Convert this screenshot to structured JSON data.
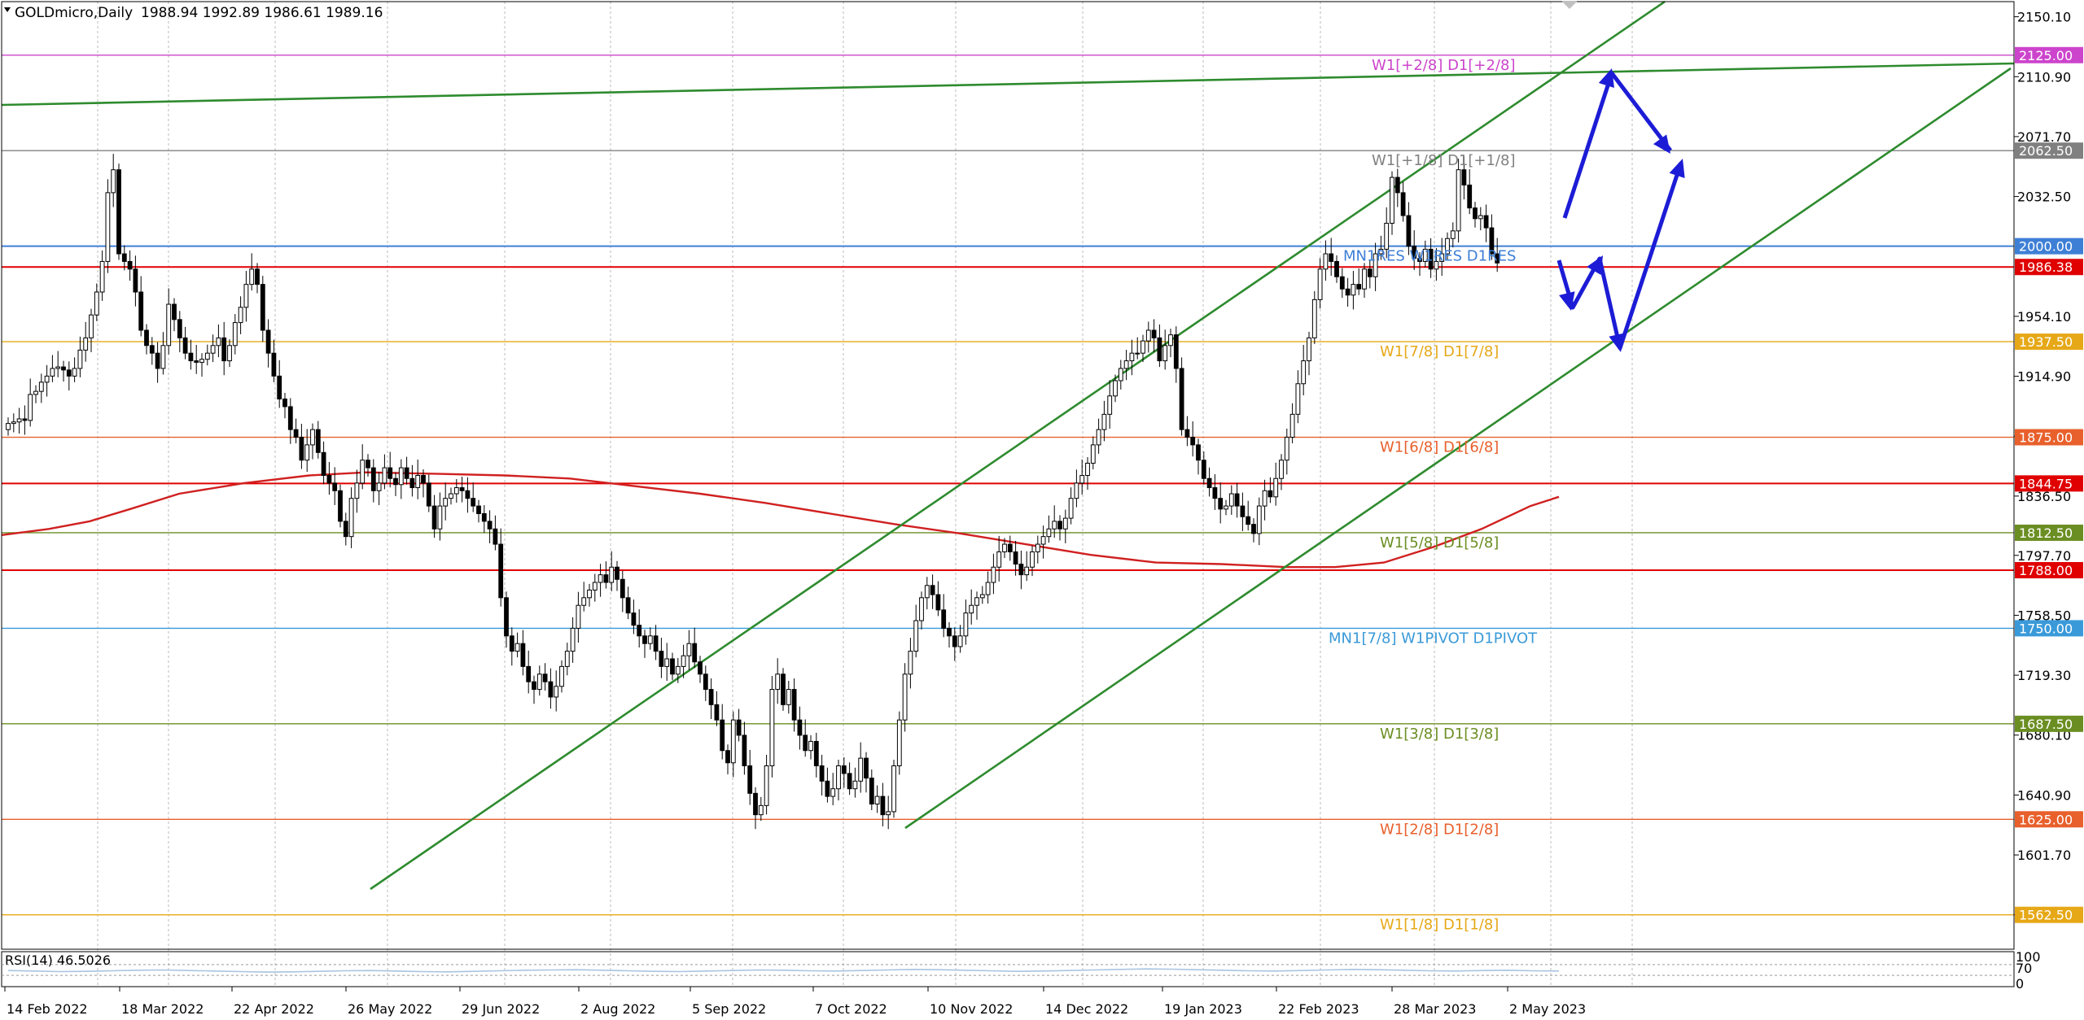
{
  "header": {
    "symbol": "GOLDmicro,Daily",
    "ohlc": "1988.94 1992.89 1986.61 1989.16"
  },
  "rsi": {
    "label": "RSI(14) 46.5026",
    "levels": [
      "100",
      "70",
      "0"
    ],
    "values": [
      48,
      46,
      44,
      45,
      47,
      49,
      50,
      48,
      46,
      44,
      42,
      43,
      45,
      47,
      48,
      46,
      44,
      43,
      45,
      47,
      49,
      50,
      51,
      49,
      47,
      45,
      44,
      46,
      48,
      50,
      49,
      47,
      46,
      48,
      50,
      52,
      51,
      49,
      47,
      45,
      46,
      48,
      50,
      52,
      54,
      53,
      51,
      49,
      47,
      46,
      48,
      50,
      52,
      51,
      49,
      47,
      46,
      48,
      49,
      47,
      46
    ]
  },
  "colors": {
    "channel": "#2e8b2e",
    "arrows": "#1c1cd6",
    "ma": "#d02020",
    "grid": "#bbbbbb",
    "axis": "#000000"
  },
  "chart_data": {
    "type": "candlestick",
    "symbol": "GOLDmicro",
    "timeframe": "Daily",
    "ylim": [
      1540,
      2160
    ],
    "y_ticks": [
      "2150.10",
      "2110.90",
      "2071.70",
      "2032.50",
      "1954.10",
      "1914.90",
      "1875.70",
      "1836.50",
      "1797.70",
      "1758.50",
      "1719.30",
      "1680.10",
      "1640.90",
      "1601.70",
      "1562.50"
    ],
    "x_labels": [
      "14 Feb 2022",
      "18 Mar 2022",
      "22 Apr 2022",
      "26 May 2022",
      "29 Jun 2022",
      "2 Aug 2022",
      "5 Sep 2022",
      "7 Oct 2022",
      "10 Nov 2022",
      "14 Dec 2022",
      "19 Jan 2023",
      "22 Feb 2023",
      "28 Mar 2023",
      "2 May 2023"
    ],
    "levels": [
      {
        "price": 2125.0,
        "label": "W1[+2/8] D1[+2/8]",
        "tag": "2125.00",
        "color": "#cc44cc"
      },
      {
        "price": 2062.5,
        "label": "W1[+1/8] D1[+1/8]",
        "tag": "2062.50",
        "color": "#808080"
      },
      {
        "price": 2000.0,
        "label": "MN1RES W1RES D1RES",
        "tag": "2000.00",
        "color": "#3e7fd6"
      },
      {
        "price": 1986.38,
        "label": "",
        "tag": "1986.38",
        "color": "#e00000"
      },
      {
        "price": 1937.5,
        "label": "W1[7/8] D1[7/8]",
        "tag": "1937.50",
        "color": "#e6a817"
      },
      {
        "price": 1875.0,
        "label": "W1[6/8] D1[6/8]",
        "tag": "1875.00",
        "color": "#e8602c"
      },
      {
        "price": 1844.75,
        "label": "",
        "tag": "1844.75",
        "color": "#e00000"
      },
      {
        "price": 1812.5,
        "label": "W1[5/8] D1[5/8]",
        "tag": "1812.50",
        "color": "#6b8e23"
      },
      {
        "price": 1788.0,
        "label": "",
        "tag": "1788.00",
        "color": "#e00000"
      },
      {
        "price": 1750.0,
        "label": "MN1[7/8] W1PIVOT D1PIVOT",
        "tag": "1750.00",
        "color": "#3a9ad9"
      },
      {
        "price": 1687.5,
        "label": "W1[3/8] D1[3/8]",
        "tag": "1687.50",
        "color": "#6b8e23"
      },
      {
        "price": 1625.0,
        "label": "W1[2/8] D1[2/8]",
        "tag": "1625.00",
        "color": "#e8602c"
      },
      {
        "price": 1562.5,
        "label": "W1[1/8] D1[1/8]",
        "tag": "1562.50",
        "color": "#e6a817"
      }
    ],
    "closes": [
      1884,
      1885,
      1887,
      1886,
      1903,
      1905,
      1911,
      1915,
      1920,
      1921,
      1919,
      1915,
      1920,
      1932,
      1940,
      1955,
      1970,
      1990,
      2035,
      2050,
      1995,
      1990,
      1985,
      1970,
      1945,
      1935,
      1930,
      1920,
      1935,
      1962,
      1952,
      1940,
      1930,
      1925,
      1924,
      1926,
      1930,
      1935,
      1940,
      1925,
      1935,
      1950,
      1960,
      1975,
      1985,
      1975,
      1945,
      1930,
      1915,
      1900,
      1895,
      1880,
      1875,
      1860,
      1870,
      1880,
      1865,
      1850,
      1845,
      1840,
      1820,
      1810,
      1835,
      1845,
      1860,
      1855,
      1840,
      1845,
      1855,
      1848,
      1844,
      1855,
      1848,
      1842,
      1850,
      1845,
      1830,
      1815,
      1830,
      1835,
      1838,
      1842,
      1840,
      1835,
      1830,
      1825,
      1820,
      1815,
      1805,
      1770,
      1745,
      1735,
      1740,
      1725,
      1715,
      1710,
      1720,
      1715,
      1705,
      1712,
      1725,
      1735,
      1750,
      1765,
      1770,
      1775,
      1780,
      1785,
      1780,
      1790,
      1782,
      1770,
      1760,
      1752,
      1745,
      1740,
      1745,
      1735,
      1725,
      1730,
      1720,
      1725,
      1732,
      1740,
      1728,
      1720,
      1710,
      1700,
      1690,
      1670,
      1662,
      1690,
      1680,
      1660,
      1642,
      1628,
      1634,
      1660,
      1710,
      1720,
      1700,
      1710,
      1690,
      1680,
      1670,
      1676,
      1660,
      1650,
      1640,
      1645,
      1660,
      1655,
      1645,
      1650,
      1665,
      1652,
      1635,
      1640,
      1628,
      1630,
      1660,
      1690,
      1720,
      1735,
      1755,
      1770,
      1778,
      1772,
      1762,
      1750,
      1745,
      1738,
      1745,
      1760,
      1765,
      1770,
      1772,
      1780,
      1790,
      1800,
      1805,
      1800,
      1792,
      1785,
      1790,
      1800,
      1805,
      1810,
      1815,
      1820,
      1815,
      1822,
      1835,
      1845,
      1850,
      1858,
      1870,
      1880,
      1890,
      1902,
      1912,
      1920,
      1925,
      1930,
      1930,
      1938,
      1945,
      1940,
      1925,
      1935,
      1942,
      1920,
      1880,
      1875,
      1870,
      1860,
      1848,
      1842,
      1835,
      1828,
      1830,
      1838,
      1830,
      1823,
      1818,
      1812,
      1830,
      1840,
      1836,
      1848,
      1860,
      1875,
      1890,
      1910,
      1925,
      1940,
      1965,
      1985,
      1995,
      1990,
      1980,
      1972,
      1968,
      1975,
      1972,
      1985,
      1980,
      1995,
      1998,
      2015,
      2045,
      2035,
      2020,
      2000,
      1992,
      1990,
      1998,
      1985,
      1990,
      1995,
      2005,
      2010,
      2050,
      2040,
      2025,
      2018,
      2020,
      2012,
      1995,
      1989
    ]
  }
}
